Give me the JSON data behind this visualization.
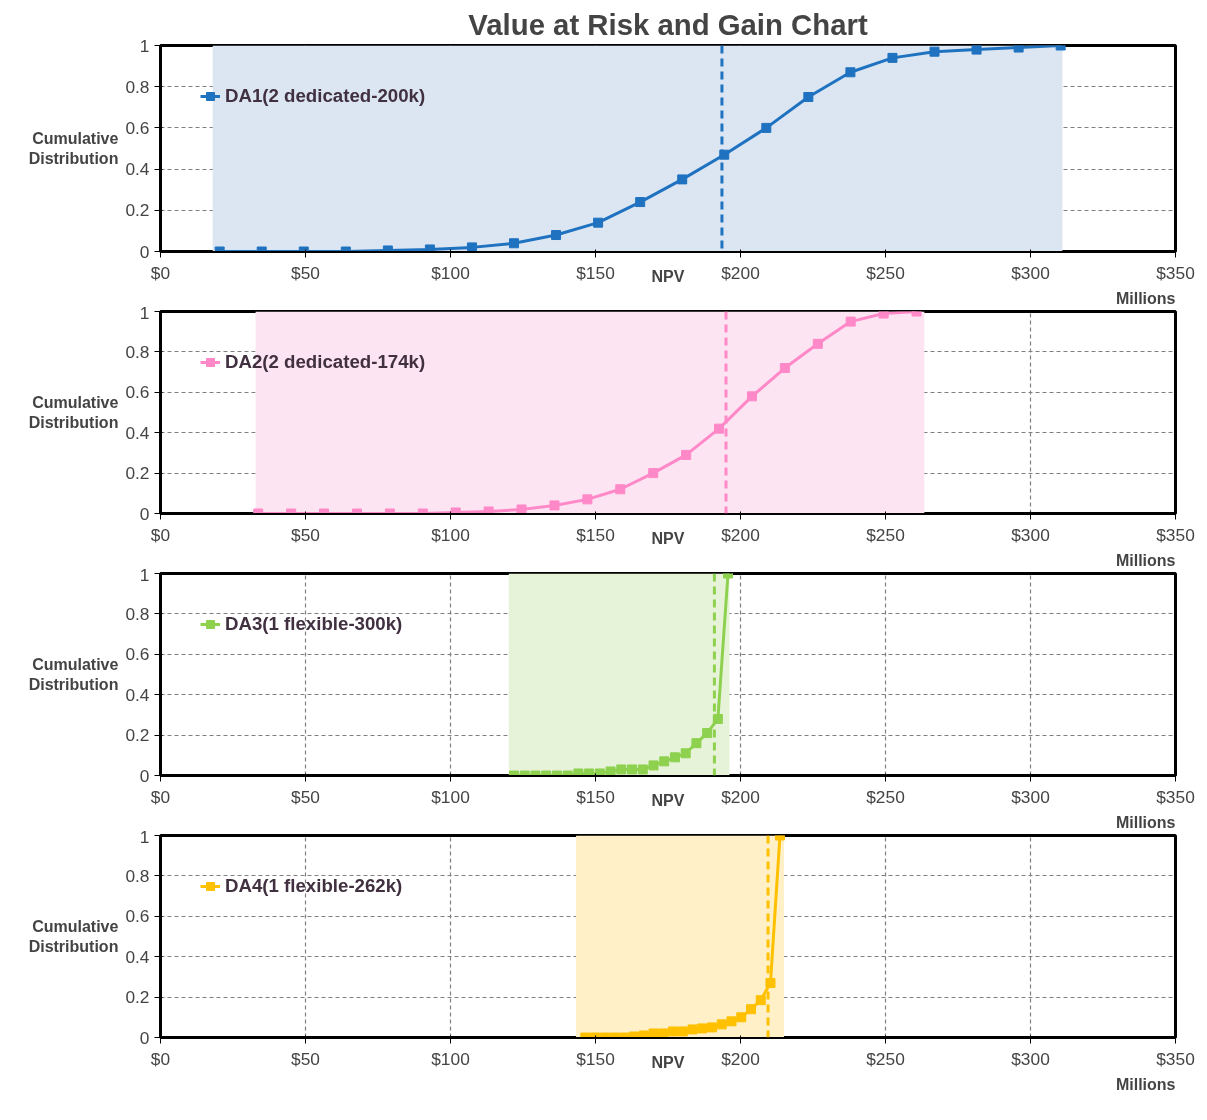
{
  "chart_data": [
    {
      "type": "line",
      "title": "Value at Risk and Gain Chart",
      "xlabel": "NPV",
      "ylabel": "Cumulative Distribution",
      "annotations": [
        "Millions"
      ],
      "x": [
        20.4,
        34.9,
        49.4,
        63.9,
        78.4,
        92.9,
        107.4,
        121.9,
        136.4,
        150.9,
        165.4,
        179.9,
        194.4,
        208.9,
        223.4,
        237.9,
        252.4,
        266.9,
        281.4,
        295.9,
        310.4
      ],
      "series": [
        {
          "name": "DA1(2 dedicated-200k)",
          "color": "#1f72c0",
          "values": [
            0,
            0,
            0,
            0,
            0.005,
            0.01,
            0.02,
            0.04,
            0.08,
            0.14,
            0.24,
            0.35,
            0.47,
            0.6,
            0.75,
            0.87,
            0.94,
            0.97,
            0.98,
            0.99,
            1.0
          ]
        }
      ],
      "ref_lines": [
        {
          "axis": "x",
          "value": 193.6,
          "label": null,
          "color": "#1f72c0",
          "line_style": "dashed"
        }
      ],
      "bands": [
        {
          "axis": "x",
          "from": 18,
          "to": 311,
          "label": null,
          "color": "#dce6f2"
        }
      ],
      "xlim": [
        0,
        350
      ],
      "ylim": [
        0,
        1
      ],
      "xticks": [
        {
          "value": 0,
          "label": "$0"
        },
        {
          "value": 50,
          "label": "$50"
        },
        {
          "value": 100,
          "label": "$100"
        },
        {
          "value": 150,
          "label": "$150"
        },
        {
          "value": 200,
          "label": "$200"
        },
        {
          "value": 250,
          "label": "$250"
        },
        {
          "value": 300,
          "label": "$300"
        },
        {
          "value": 350,
          "label": "$350"
        }
      ],
      "yticks": [
        0,
        0.2,
        0.4,
        0.6,
        0.8,
        1
      ],
      "grid": true,
      "legend": "top left",
      "marker": "square",
      "line_style": "solid"
    },
    {
      "type": "line",
      "xlabel": "NPV",
      "ylabel": "Cumulative Distribution",
      "annotations": [
        "Millions"
      ],
      "x": [
        33.7,
        45.05,
        56.4,
        67.75,
        79.1,
        90.45,
        101.8,
        113.15,
        124.5,
        135.85,
        147.2,
        158.55,
        169.9,
        181.25,
        192.6,
        203.95,
        215.3,
        226.65,
        238.0,
        249.35,
        260.7
      ],
      "series": [
        {
          "name": "DA2(2 dedicated-174k)",
          "color": "#ff88c8",
          "values": [
            0,
            0,
            0,
            0,
            0,
            0,
            0.005,
            0.01,
            0.02,
            0.04,
            0.07,
            0.12,
            0.2,
            0.29,
            0.42,
            0.58,
            0.72,
            0.84,
            0.95,
            0.99,
            1.0
          ]
        }
      ],
      "ref_lines": [
        {
          "axis": "x",
          "value": 195,
          "label": null,
          "color": "#ff88c8",
          "line_style": "dashed"
        }
      ],
      "bands": [
        {
          "axis": "x",
          "from": 32.8,
          "to": 263.4,
          "label": null,
          "color": "#fde4f2"
        }
      ],
      "xlim": [
        0,
        350
      ],
      "ylim": [
        0,
        1
      ],
      "xticks": [
        {
          "value": 0,
          "label": "$0"
        },
        {
          "value": 50,
          "label": "$50"
        },
        {
          "value": 100,
          "label": "$100"
        },
        {
          "value": 150,
          "label": "$150"
        },
        {
          "value": 200,
          "label": "$200"
        },
        {
          "value": 250,
          "label": "$250"
        },
        {
          "value": 300,
          "label": "$300"
        },
        {
          "value": 350,
          "label": "$350"
        }
      ],
      "yticks": [
        0,
        0.2,
        0.4,
        0.6,
        0.8,
        1
      ],
      "grid": true,
      "legend": "top left",
      "marker": "square",
      "line_style": "solid"
    },
    {
      "type": "line",
      "xlabel": "NPV",
      "ylabel": "Cumulative Distribution",
      "annotations": [
        "Millions"
      ],
      "x": [
        121.9,
        125.6,
        129.3,
        133.0,
        136.7,
        140.4,
        144.1,
        147.8,
        151.5,
        155.2,
        158.9,
        162.6,
        166.3,
        170.0,
        173.7,
        177.4,
        181.1,
        184.8,
        188.5,
        192.2,
        195.7
      ],
      "series": [
        {
          "name": "DA3(1 flexible-300k)",
          "color": "#8ed14f",
          "values": [
            0,
            0,
            0,
            0,
            0,
            0,
            0.01,
            0.01,
            0.01,
            0.02,
            0.03,
            0.03,
            0.03,
            0.05,
            0.07,
            0.09,
            0.11,
            0.16,
            0.21,
            0.28,
            1.0
          ]
        }
      ],
      "ref_lines": [
        {
          "axis": "x",
          "value": 191,
          "label": null,
          "color": "#8ed14f",
          "line_style": "dashed"
        }
      ],
      "bands": [
        {
          "axis": "x",
          "from": 120.1,
          "to": 196.2,
          "label": null,
          "color": "#e6f3d8"
        }
      ],
      "xlim": [
        0,
        350
      ],
      "ylim": [
        0,
        1
      ],
      "xticks": [
        {
          "value": 0,
          "label": "$0"
        },
        {
          "value": 50,
          "label": "$50"
        },
        {
          "value": 100,
          "label": "$100"
        },
        {
          "value": 150,
          "label": "$150"
        },
        {
          "value": 200,
          "label": "$200"
        },
        {
          "value": 250,
          "label": "$250"
        },
        {
          "value": 300,
          "label": "$300"
        },
        {
          "value": 350,
          "label": "$350"
        }
      ],
      "yticks": [
        0,
        0.2,
        0.4,
        0.6,
        0.8,
        1
      ],
      "grid": true,
      "legend": "top left",
      "marker": "square",
      "line_style": "solid"
    },
    {
      "type": "line",
      "xlabel": "NPV",
      "ylabel": "Cumulative Distribution",
      "annotations": [
        "Millions"
      ],
      "x": [
        146.5,
        149.86,
        153.22,
        156.58,
        159.94,
        163.3,
        166.66,
        170.02,
        173.38,
        176.74,
        180.1,
        183.46,
        186.82,
        190.18,
        193.54,
        196.9,
        200.26,
        203.62,
        206.98,
        210.34,
        213.6
      ],
      "series": [
        {
          "name": "DA4(1 flexible-262k)",
          "color": "#ffc000",
          "values": [
            0,
            0,
            0,
            0,
            0,
            0.005,
            0.01,
            0.02,
            0.02,
            0.03,
            0.03,
            0.04,
            0.045,
            0.05,
            0.065,
            0.08,
            0.1,
            0.14,
            0.185,
            0.27,
            1.0
          ]
        }
      ],
      "ref_lines": [
        {
          "axis": "x",
          "value": 209.5,
          "label": null,
          "color": "#ffc000",
          "line_style": "dashed"
        }
      ],
      "bands": [
        {
          "axis": "x",
          "from": 143.3,
          "to": 215,
          "label": null,
          "color": "#fff0c8"
        }
      ],
      "xlim": [
        0,
        350
      ],
      "ylim": [
        0,
        1
      ],
      "xticks": [
        {
          "value": 0,
          "label": "$0"
        },
        {
          "value": 50,
          "label": "$50"
        },
        {
          "value": 100,
          "label": "$100"
        },
        {
          "value": 150,
          "label": "$150"
        },
        {
          "value": 200,
          "label": "$200"
        },
        {
          "value": 250,
          "label": "$250"
        },
        {
          "value": 300,
          "label": "$300"
        },
        {
          "value": 350,
          "label": "$350"
        }
      ],
      "yticks": [
        0,
        0.2,
        0.4,
        0.6,
        0.8,
        1
      ],
      "grid": true,
      "legend": "top left",
      "marker": "square",
      "line_style": "solid"
    }
  ]
}
